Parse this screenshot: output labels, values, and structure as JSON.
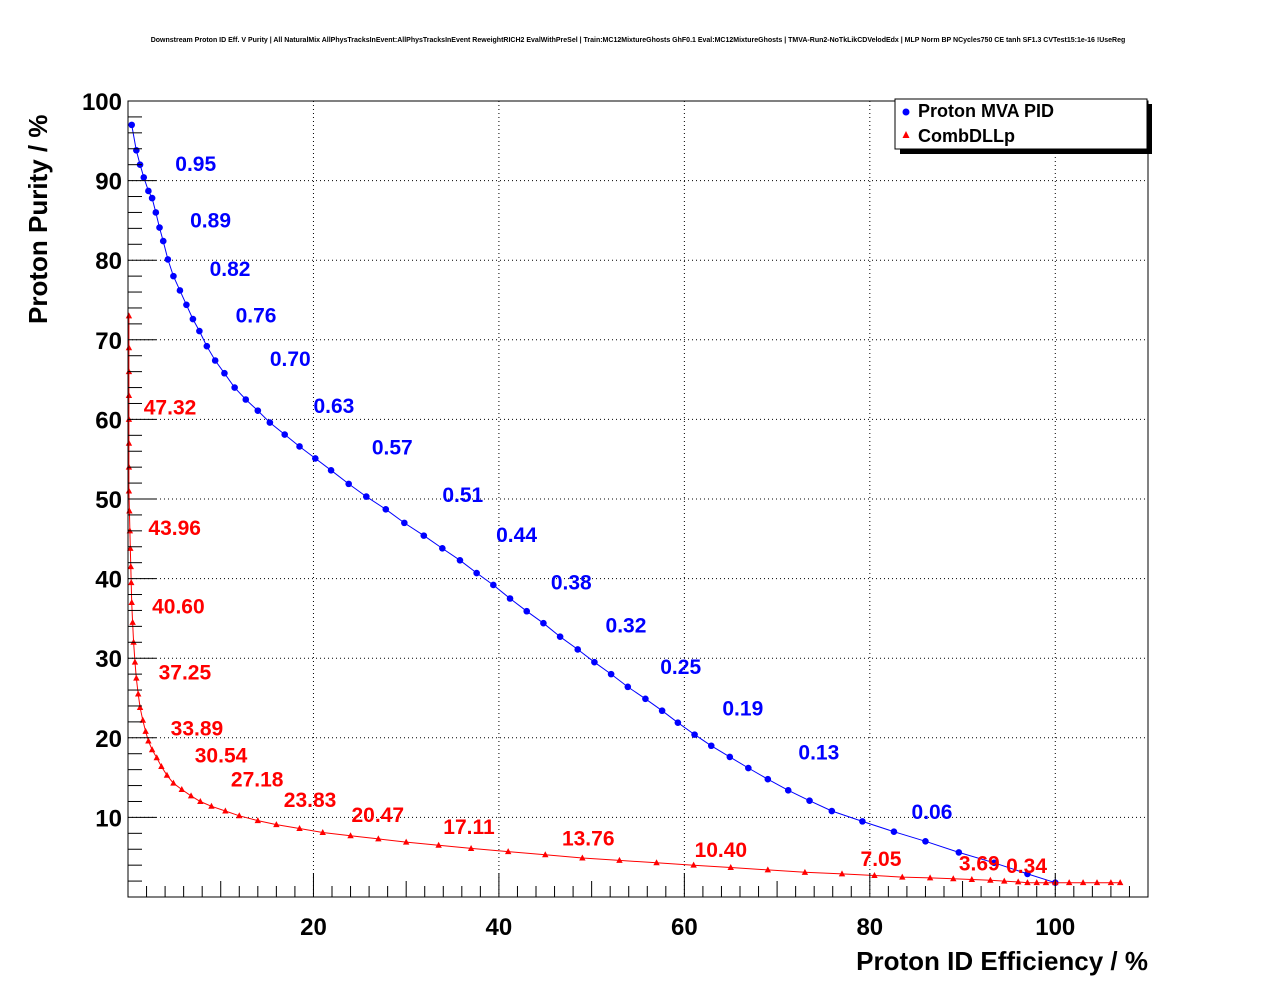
{
  "colors": {
    "mva": "#0000ff",
    "dll": "#ff0000",
    "axis": "#000000",
    "grid": "#000000",
    "background": "#ffffff"
  },
  "chart_data": {
    "type": "line",
    "title": "Downstream Proton ID Eff. V Purity | All NaturalMix AllPhysTracksInEvent:AllPhysTracksInEvent ReweightRICH2 EvalWithPreSel | Train:MC12MixtureGhosts GhF0.1 Eval:MC12MixtureGhosts | TMVA-Run2-NoTkLikCDVelodEdx | MLP Norm BP NCycles750 CE tanh SF1.3 CVTest15:1e-16 !UseReg",
    "xlabel": "Proton ID Efficiency / %",
    "ylabel": "Proton Purity / %",
    "xlim": [
      0,
      110
    ],
    "ylim": [
      0,
      100
    ],
    "xticks": [
      20,
      40,
      60,
      80,
      100
    ],
    "yticks": [
      10,
      20,
      30,
      40,
      50,
      60,
      70,
      80,
      90,
      100
    ],
    "grid": true,
    "legend_position": "top-right",
    "series": [
      {
        "name": "Proton MVA PID",
        "marker": "circle",
        "x": [
          0.4,
          0.9,
          1.3,
          1.7,
          2.2,
          2.6,
          3.0,
          3.4,
          3.8,
          4.3,
          4.9,
          5.6,
          6.3,
          7.0,
          7.7,
          8.5,
          9.4,
          10.4,
          11.5,
          12.7,
          14.0,
          15.3,
          16.9,
          18.5,
          20.2,
          21.9,
          23.8,
          25.7,
          27.8,
          29.8,
          31.9,
          33.9,
          35.8,
          37.6,
          39.4,
          41.2,
          43.0,
          44.8,
          46.6,
          48.5,
          50.3,
          52.1,
          53.9,
          55.8,
          57.6,
          59.3,
          61.1,
          62.9,
          64.9,
          66.9,
          69.0,
          71.2,
          73.5,
          75.9,
          79.2,
          82.6,
          86.0,
          89.6,
          93.4,
          97.0,
          100.0
        ],
        "y": [
          97.0,
          93.8,
          92.0,
          90.4,
          88.7,
          87.8,
          86.0,
          84.1,
          82.4,
          80.1,
          78.0,
          76.2,
          74.4,
          72.6,
          71.1,
          69.2,
          67.4,
          65.8,
          64.0,
          62.5,
          61.1,
          59.6,
          58.1,
          56.6,
          55.1,
          53.6,
          51.9,
          50.3,
          48.7,
          47.0,
          45.4,
          43.8,
          42.3,
          40.7,
          39.2,
          37.5,
          35.9,
          34.4,
          32.7,
          31.1,
          29.5,
          28.0,
          26.4,
          24.9,
          23.4,
          21.9,
          20.4,
          19.0,
          17.6,
          16.2,
          14.8,
          13.4,
          12.1,
          10.8,
          9.5,
          8.2,
          7.0,
          5.6,
          4.3,
          2.9,
          1.8
        ],
        "point_labels": [
          {
            "text": "0.95",
            "x": 5.1,
            "y": 91.2
          },
          {
            "text": "0.89",
            "x": 6.7,
            "y": 84.1
          },
          {
            "text": "0.82",
            "x": 8.8,
            "y": 78.0
          },
          {
            "text": "0.76",
            "x": 11.6,
            "y": 72.2
          },
          {
            "text": "0.70",
            "x": 15.3,
            "y": 66.7
          },
          {
            "text": "0.63",
            "x": 20.0,
            "y": 60.8
          },
          {
            "text": "0.57",
            "x": 26.3,
            "y": 55.6
          },
          {
            "text": "0.51",
            "x": 33.9,
            "y": 49.6
          },
          {
            "text": "0.44",
            "x": 39.7,
            "y": 44.6
          },
          {
            "text": "0.38",
            "x": 45.6,
            "y": 38.6
          },
          {
            "text": "0.32",
            "x": 51.5,
            "y": 33.2
          },
          {
            "text": "0.25",
            "x": 57.4,
            "y": 28.0
          },
          {
            "text": "0.19",
            "x": 64.1,
            "y": 22.8
          },
          {
            "text": "0.13",
            "x": 72.3,
            "y": 17.3
          },
          {
            "text": "0.06",
            "x": 84.5,
            "y": 9.8
          }
        ]
      },
      {
        "name": "CombDLLp",
        "marker": "triangle",
        "x": [
          0.1,
          0.1,
          0.1,
          0.1,
          0.1,
          0.1,
          0.1,
          0.1,
          0.15,
          0.2,
          0.25,
          0.3,
          0.35,
          0.4,
          0.5,
          0.6,
          0.75,
          0.9,
          1.1,
          1.3,
          1.6,
          1.9,
          2.2,
          2.6,
          3.1,
          3.6,
          4.2,
          4.9,
          5.8,
          6.8,
          7.8,
          9.0,
          10.5,
          12.0,
          14.0,
          16.0,
          18.5,
          21.0,
          24.0,
          27.0,
          30.0,
          33.5,
          37.0,
          41.0,
          45.0,
          49.0,
          53.0,
          57.0,
          61.0,
          65.0,
          69.0,
          73.0,
          77.0,
          80.5,
          83.5,
          86.5,
          89.0,
          91.0,
          93.0,
          94.5,
          96.0,
          97.0,
          98.0,
          99.0,
          100.0,
          101.5,
          103.0,
          104.5,
          106.0,
          107.0
        ],
        "y": [
          73.0,
          69.0,
          66.0,
          63.0,
          60.0,
          57.0,
          54.0,
          51.0,
          48.5,
          46.0,
          43.8,
          41.5,
          39.5,
          37.0,
          34.5,
          32.0,
          29.5,
          27.5,
          25.5,
          23.8,
          22.2,
          20.8,
          19.6,
          18.5,
          17.5,
          16.4,
          15.3,
          14.3,
          13.5,
          12.7,
          12.0,
          11.4,
          10.8,
          10.2,
          9.6,
          9.1,
          8.6,
          8.1,
          7.7,
          7.3,
          6.9,
          6.5,
          6.1,
          5.7,
          5.3,
          4.9,
          4.6,
          4.3,
          4.0,
          3.7,
          3.4,
          3.1,
          2.9,
          2.7,
          2.5,
          2.4,
          2.3,
          2.2,
          2.1,
          2.0,
          1.9,
          1.8,
          1.8,
          1.8,
          1.8,
          1.8,
          1.8,
          1.8,
          1.8,
          1.8
        ],
        "point_labels": [
          {
            "text": "47.32",
            "x": 1.7,
            "y": 60.6
          },
          {
            "text": "43.96",
            "x": 2.2,
            "y": 45.5
          },
          {
            "text": "40.60",
            "x": 2.6,
            "y": 35.6
          },
          {
            "text": "37.25",
            "x": 3.3,
            "y": 27.3
          },
          {
            "text": "33.89",
            "x": 4.6,
            "y": 20.3
          },
          {
            "text": "30.54",
            "x": 7.2,
            "y": 16.9
          },
          {
            "text": "27.18",
            "x": 11.1,
            "y": 13.9
          },
          {
            "text": "23.83",
            "x": 16.8,
            "y": 11.3
          },
          {
            "text": "20.47",
            "x": 24.1,
            "y": 9.4
          },
          {
            "text": "17.11",
            "x": 34.0,
            "y": 7.9
          },
          {
            "text": "13.76",
            "x": 46.8,
            "y": 6.5
          },
          {
            "text": "10.40",
            "x": 61.1,
            "y": 5.0
          },
          {
            "text": "7.05",
            "x": 79.0,
            "y": 3.9
          },
          {
            "text": "3.69",
            "x": 89.6,
            "y": 3.3
          },
          {
            "text": "0.34",
            "x": 94.7,
            "y": 3.0
          }
        ]
      }
    ]
  }
}
